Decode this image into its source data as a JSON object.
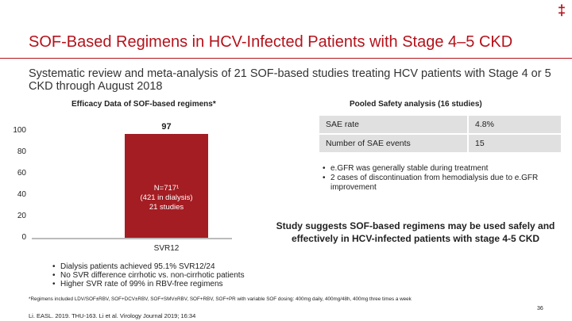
{
  "header": {
    "dagger": "‡",
    "title": "SOF-Based Regimens in HCV-Infected Patients with Stage 4–5 CKD"
  },
  "subtitle": "Systematic review and meta-analysis of 21 SOF-based studies treating HCV patients with Stage 4 or 5 CKD through August 2018",
  "efficacy": {
    "title": "Efficacy Data of SOF-based regimens*",
    "chart_data": {
      "type": "bar",
      "categories": [
        "SVR12"
      ],
      "values": [
        97
      ],
      "ylim": [
        0,
        100
      ],
      "yticks": [
        "0",
        "20",
        "40",
        "60",
        "80",
        "100"
      ],
      "data_label": "97",
      "bar_text": [
        "N=717¹",
        "(421 in dialysis)",
        "21 studies"
      ],
      "colors": {
        "bar": "#a31d23"
      }
    }
  },
  "safety": {
    "title": "Pooled Safety analysis (16 studies)",
    "rows": [
      {
        "label": "SAE rate",
        "value": "4.8%"
      },
      {
        "label": "Number of SAE events",
        "value": "15"
      }
    ],
    "bullets": [
      "e.GFR was generally stable during treatment",
      "2 cases of discontinuation from hemodialysis due to e.GFR improvement"
    ]
  },
  "study_conclusion": "Study suggests SOF-based regimens may be used safely and effectively in HCV-infected patients with stage 4-5 CKD",
  "bottom_bullets": [
    "Dialysis patients achieved 95.1% SVR12/24",
    "No SVR difference cirrhotic vs. non-cirrhotic patients",
    "Higher SVR rate of 99% in RBV-free regimens"
  ],
  "footnote": "*Regimens included LDV/SOF±RBV, SOF+DCV±RBV, SOF+SMV±RBV, SOF+RBV, SOF+PR with variable SOF dosing: 400mg daily, 400mg/48h, 400mg three times a week",
  "citation": "Li. EASL. 2019. THU-163. Li et al. Virology Journal 2019; 16:34",
  "page_number": "36",
  "colors": {
    "accent": "#b5121b",
    "bar": "#a31d23",
    "table_bg": "#e0e0e0"
  }
}
